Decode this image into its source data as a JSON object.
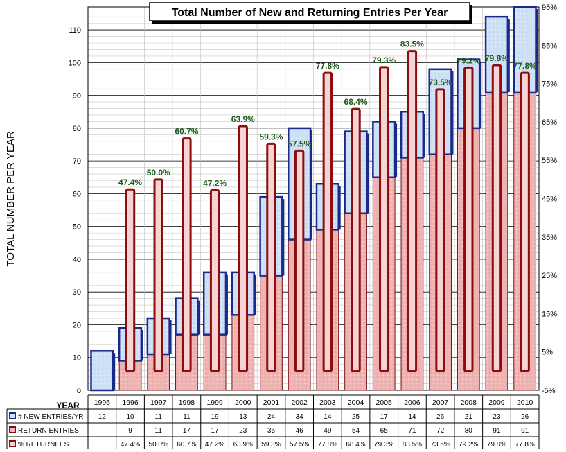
{
  "chart_data": {
    "type": "bar",
    "title": "Total Number of New and Returning Entries Per Year",
    "ylabel": "TOTAL NUMBER PER YEAR",
    "xlabel": "YEAR",
    "categories": [
      "1995",
      "1996",
      "1997",
      "1998",
      "1999",
      "2000",
      "2001",
      "2002",
      "2003",
      "2004",
      "2005",
      "2006",
      "2007",
      "2008",
      "2009",
      "2010"
    ],
    "ylim": [
      0,
      117
    ],
    "yticks": [
      0,
      10,
      20,
      30,
      40,
      50,
      60,
      70,
      80,
      90,
      100,
      110
    ],
    "y2lim": [
      -5,
      95
    ],
    "y2ticks": [
      "-5%",
      "5%",
      "15%",
      "25%",
      "35%",
      "45%",
      "55%",
      "65%",
      "75%",
      "85%",
      "95%"
    ],
    "grid": true,
    "series": [
      {
        "name": "# NEW ENTRIES/YR",
        "values": [
          12,
          10,
          11,
          11,
          19,
          13,
          24,
          34,
          14,
          25,
          17,
          14,
          26,
          21,
          23,
          26
        ],
        "color": "#1f2f8f"
      },
      {
        "name": "RETURN ENTRIES",
        "values": [
          null,
          9,
          11,
          17,
          17,
          23,
          35,
          46,
          49,
          54,
          65,
          71,
          72,
          80,
          91,
          91
        ],
        "color": "#7f1010"
      },
      {
        "name": "% RETURNEES",
        "values": [
          null,
          47.4,
          50.0,
          60.7,
          47.2,
          63.9,
          59.3,
          57.5,
          77.8,
          68.4,
          79.3,
          83.5,
          73.5,
          79.2,
          79.8,
          77.8
        ],
        "display": [
          "",
          "47.4%",
          "50.0%",
          "60.7%",
          "47.2%",
          "63.9%",
          "59.3%",
          "57.5%",
          "77.8%",
          "68.4%",
          "79.3%",
          "83.5%",
          "73.5%",
          "79.2%",
          "79.8%",
          "77.8%"
        ],
        "color": "#8b0d0d"
      }
    ],
    "bar_colors": {
      "new_fill": "#cfe2f7",
      "new_border": "#1a2a8a",
      "return_fill": "#f0b8b8",
      "return_border": "#7a1010",
      "pct_fill": "#f6d4d4",
      "pct_border": "#8b0d0d",
      "pct_label": "#1f5a1f"
    }
  }
}
